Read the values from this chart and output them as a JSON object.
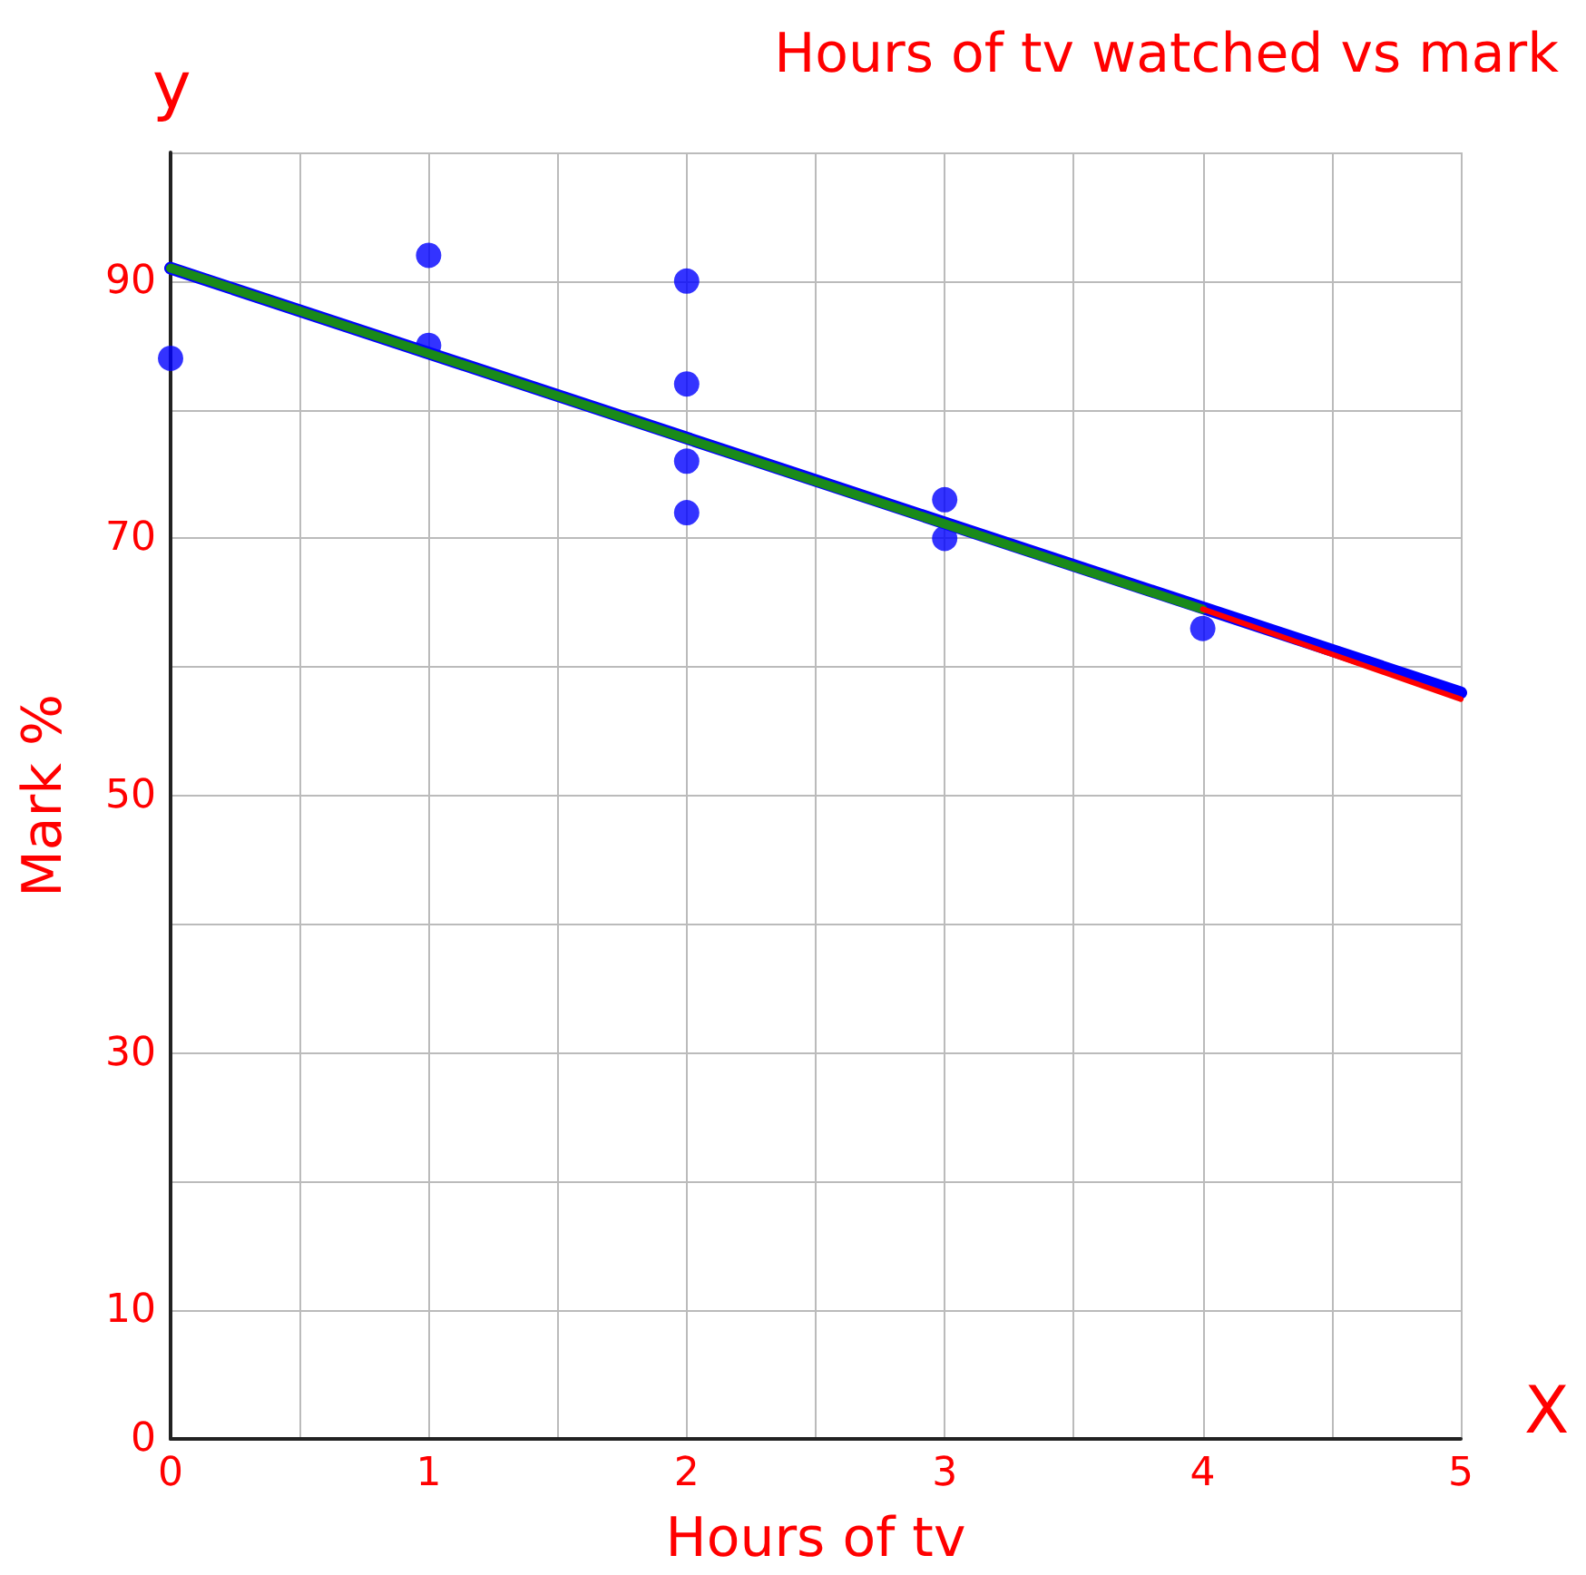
{
  "chart_data": {
    "type": "scatter",
    "title": "Hours of tv watched vs mark",
    "xlabel": "Hours of tv",
    "ylabel": "Mark %",
    "annotations": [
      "y",
      "X"
    ],
    "xlim": [
      0,
      5
    ],
    "ylim": [
      0,
      100
    ],
    "xticks": [
      0,
      {
        "value": 0.5,
        "label": null
      },
      1,
      {
        "value": 1.5,
        "label": null
      },
      2,
      {
        "value": 2.5,
        "label": null
      },
      3,
      {
        "value": 3.5,
        "label": null
      },
      4,
      {
        "value": 4.5,
        "label": null
      },
      5
    ],
    "yticks": [
      0,
      10,
      {
        "value": 20,
        "label": null
      },
      30,
      {
        "value": 40,
        "label": null
      },
      50,
      {
        "value": 60,
        "label": null
      },
      70,
      {
        "value": 80,
        "label": null
      },
      90,
      {
        "value": 100,
        "label": null
      }
    ],
    "grid": true,
    "marker": "circle",
    "series": [
      {
        "color": "#0000ff",
        "x": [
          0,
          1,
          1,
          2,
          2,
          2,
          2,
          3,
          3,
          4
        ],
        "values": [
          84,
          92,
          85,
          90,
          82,
          76,
          72,
          73,
          70,
          63
        ]
      },
      {
        "type": "line",
        "color": "#0000ff",
        "x": [
          0,
          5
        ],
        "values": [
          91,
          58
        ],
        "marker": "none"
      },
      {
        "type": "line",
        "color": "#1a8a1a",
        "x": [
          0,
          4
        ],
        "values": [
          91,
          64.5
        ],
        "marker": "none"
      },
      {
        "type": "line",
        "color": "#ff0000",
        "x": [
          4,
          5
        ],
        "values": [
          64.5,
          57.5
        ],
        "marker": "none"
      }
    ]
  }
}
